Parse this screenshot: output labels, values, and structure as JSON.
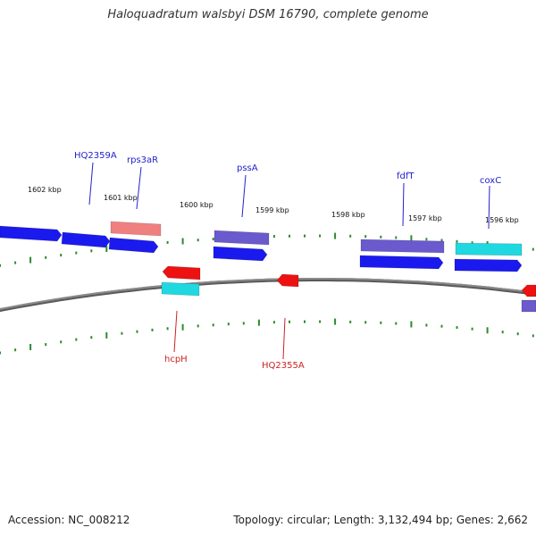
{
  "map": {
    "title": "Haloquadratum walsbyi DSM 16790, complete genome",
    "colors": {
      "background": "#ffffff",
      "backbone": "#8a8a8a",
      "tick": "#2e8b2e",
      "forward_cds": "#1a1aee",
      "reverse_cds": "#ee1111",
      "rna": "#f08080",
      "pseudo_or_other": "#6a5acd",
      "cyan_feature": "#20d8e0",
      "label_forward": "#2222cc",
      "label_reverse": "#cc2222"
    },
    "kbp_labels": [
      "1602 kbp",
      "1601 kbp",
      "1600 kbp",
      "1599 kbp",
      "1598 kbp",
      "1597 kbp",
      "1596 kbp"
    ],
    "gene_labels_forward": [
      "HQ2359A",
      "rps3aR",
      "pssA",
      "fdfT",
      "coxC"
    ],
    "gene_labels_reverse": [
      "hcpH",
      "HQ2355A"
    ]
  },
  "footer": {
    "accession": "Accession: NC_008212",
    "stats": "Topology: circular; Length: 3,132,494 bp; Genes: 2,662"
  }
}
